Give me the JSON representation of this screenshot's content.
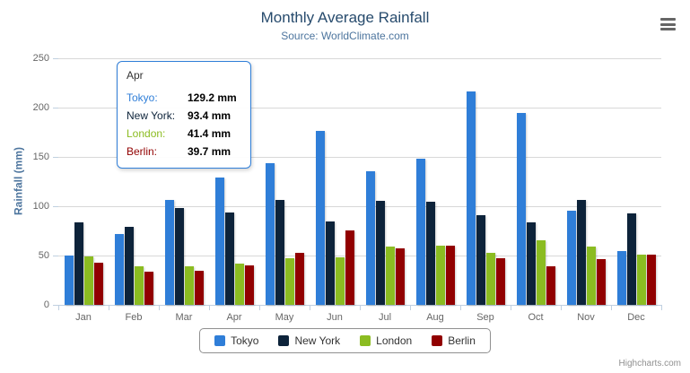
{
  "chart_data": {
    "type": "bar",
    "title": "Monthly Average Rainfall",
    "subtitle": "Source: WorldClimate.com",
    "ylabel": "Rainfall (mm)",
    "ylim": [
      0,
      250
    ],
    "ytick_interval": 50,
    "grid": true,
    "legend_position": "bottom",
    "categories": [
      "Jan",
      "Feb",
      "Mar",
      "Apr",
      "May",
      "Jun",
      "Jul",
      "Aug",
      "Sep",
      "Oct",
      "Nov",
      "Dec"
    ],
    "series": [
      {
        "name": "Tokyo",
        "color": "#2f7ed8",
        "values": [
          49.9,
          71.5,
          106.4,
          129.2,
          144.0,
          176.0,
          135.6,
          148.5,
          216.4,
          194.1,
          95.6,
          54.4
        ]
      },
      {
        "name": "New York",
        "color": "#0d233a",
        "values": [
          83.6,
          78.8,
          98.5,
          93.4,
          106.0,
          84.5,
          105.0,
          104.3,
          91.2,
          83.5,
          106.6,
          92.3
        ]
      },
      {
        "name": "London",
        "color": "#8bbc21",
        "values": [
          48.9,
          38.8,
          39.3,
          41.4,
          47.0,
          48.3,
          59.0,
          59.6,
          52.4,
          65.2,
          59.3,
          51.2
        ]
      },
      {
        "name": "Berlin",
        "color": "#910000",
        "values": [
          42.4,
          33.2,
          34.5,
          39.7,
          52.6,
          75.5,
          57.4,
          60.4,
          47.6,
          39.1,
          46.8,
          51.1
        ]
      }
    ]
  },
  "tooltip": {
    "category": "Apr",
    "rows": [
      {
        "label": "Tokyo:",
        "value": "129.2 mm",
        "color": "#2f7ed8"
      },
      {
        "label": "New York:",
        "value": "93.4 mm",
        "color": "#0d233a"
      },
      {
        "label": "London:",
        "value": "41.4 mm",
        "color": "#8bbc21"
      },
      {
        "label": "Berlin:",
        "value": "39.7 mm",
        "color": "#910000"
      }
    ]
  },
  "credits": "Highcharts.com"
}
